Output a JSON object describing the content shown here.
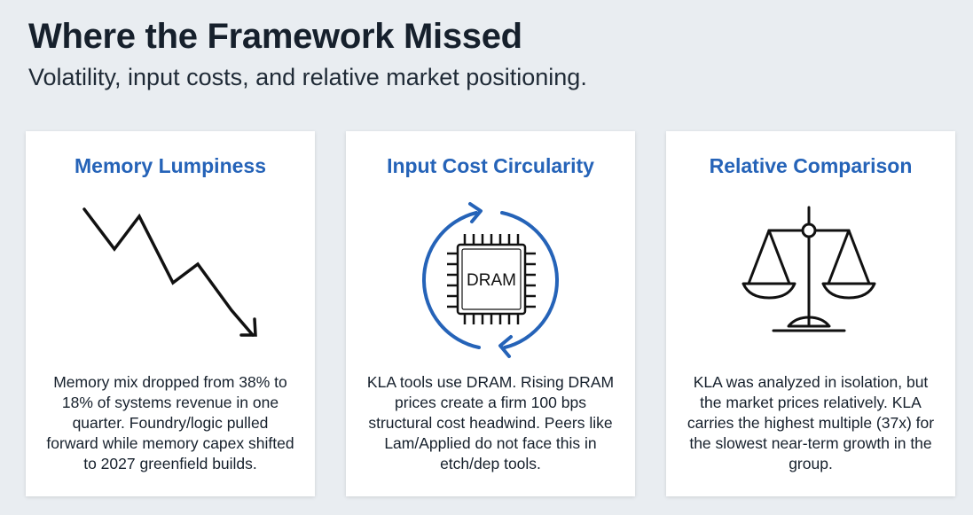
{
  "header": {
    "title": "Where the Framework Missed",
    "subtitle": "Volatility, input costs, and relative market positioning."
  },
  "cards": [
    {
      "title": "Memory Lumpiness",
      "icon": "trending-down-arrow-icon",
      "body": "Memory mix dropped from 38% to 18% of systems revenue in one quarter. Foundry/logic pulled forward while memory capex shifted to 2027 greenfield builds."
    },
    {
      "title": "Input Cost Circularity",
      "icon": "dram-chip-cycle-icon",
      "chip_label": "DRAM",
      "body": "KLA tools use DRAM. Rising DRAM prices create a firm 100 bps structural cost headwind. Peers like Lam/Applied do not face this in etch/dep tools."
    },
    {
      "title": "Relative Comparison",
      "icon": "balance-scale-icon",
      "body": "KLA was analyzed in isolation, but the market prices relatively. KLA carries the highest multiple (37x) for the slowest near-term growth in the group."
    }
  ],
  "colors": {
    "accent": "#2563b8",
    "text": "#16202c",
    "background": "#e9edf1"
  }
}
